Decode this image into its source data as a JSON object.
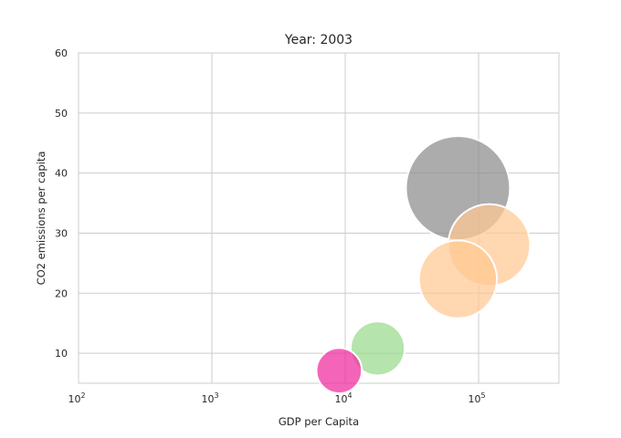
{
  "chart_data": {
    "type": "scatter",
    "title": "Year: 2003",
    "xlabel": "GDP per Capita",
    "ylabel": "CO2 emissions per capita",
    "x_scale": "log",
    "xlim": [
      100,
      400000
    ],
    "ylim": [
      5,
      60
    ],
    "x_ticks": [
      {
        "value": 100,
        "base": "10",
        "exp": "2"
      },
      {
        "value": 1000,
        "base": "10",
        "exp": "3"
      },
      {
        "value": 10000,
        "base": "10",
        "exp": "4"
      },
      {
        "value": 100000,
        "base": "10",
        "exp": "5"
      }
    ],
    "y_ticks": [
      10,
      20,
      30,
      40,
      50,
      60
    ],
    "grid": true,
    "points": [
      {
        "x": 70000,
        "y": 37.5,
        "size": 1.0,
        "color": "#8c8c8c"
      },
      {
        "x": 120000,
        "y": 28.0,
        "size": 0.62,
        "color": "#ffc891"
      },
      {
        "x": 70000,
        "y": 22.3,
        "size": 0.56,
        "color": "#ffc891"
      },
      {
        "x": 17500,
        "y": 10.8,
        "size": 0.27,
        "color": "#98d98e"
      },
      {
        "x": 9000,
        "y": 7.1,
        "size": 0.19,
        "color": "#f0289c"
      }
    ]
  }
}
